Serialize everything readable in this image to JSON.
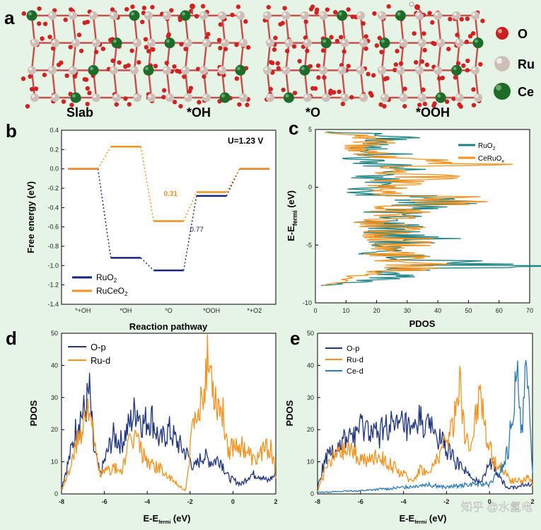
{
  "panels": {
    "a": {
      "letter": "a",
      "structures": [
        "Slab",
        "*OH",
        "*O",
        "*OOH"
      ],
      "legend": [
        {
          "label": "O",
          "color": "#c82020"
        },
        {
          "label": "Ru",
          "color": "#d8cdc6"
        },
        {
          "label": "Ce",
          "color": "#1f6b2a"
        }
      ]
    },
    "b": {
      "letter": "b"
    },
    "c": {
      "letter": "c"
    },
    "d": {
      "letter": "d"
    },
    "e": {
      "letter": "e"
    }
  },
  "colors": {
    "ru": "#1a237e",
    "orange": "#f5921e",
    "teal": "#1b8383",
    "ce": "#2a7ab5",
    "navy": "#1f3580"
  },
  "watermark": "知乎 @水氢电",
  "chart_data": [
    {
      "id": "b",
      "type": "line",
      "title": "",
      "annotation": "U=1.23 V",
      "xlabel": "Reaction pathway",
      "ylabel": "Free energy (eV)",
      "categories": [
        "*+OH",
        "*OH",
        "*O",
        "*OOH",
        "*+O2"
      ],
      "ylim": [
        -1.4,
        0.4
      ],
      "yticks": [
        "0.4",
        "0.2",
        "0.0",
        "-0.2",
        "-0.4",
        "-0.6",
        "-0.8",
        "-1.0",
        "-1.2",
        "-1.4"
      ],
      "series": [
        {
          "name": "RuO2",
          "name_main": "RuO",
          "name_sub": "2",
          "values": [
            0.0,
            -0.92,
            -1.05,
            -0.28,
            0.0
          ]
        },
        {
          "name": "RuCeO2",
          "name_main": "RuCeO",
          "name_sub": "2",
          "values": [
            0.0,
            0.23,
            -0.54,
            -0.24,
            0.0
          ]
        }
      ],
      "labels": [
        {
          "text": "0.31",
          "series": "RuCeO2"
        },
        {
          "text": "0.77",
          "series": "RuO2"
        }
      ]
    },
    {
      "id": "c",
      "type": "line",
      "xlabel": "PDOS",
      "ylabel_main": "E-E",
      "ylabel_sub": "fermi",
      "ylabel_unit": " (eV)",
      "xlim": [
        0,
        70
      ],
      "ylim": [
        -10,
        5
      ],
      "xticks": [
        "0",
        "10",
        "20",
        "30",
        "40",
        "50",
        "60",
        "70"
      ],
      "yticks": [
        "5",
        "0",
        "-5",
        "-10"
      ],
      "series": [
        {
          "name": "RuO2",
          "name_main": "RuO",
          "name_sub": "2",
          "profile": [
            [
              4.8,
              5
            ],
            [
              4.6,
              20
            ],
            [
              4.2,
              26
            ],
            [
              3.5,
              15
            ],
            [
              3,
              25
            ],
            [
              2.5,
              14
            ],
            [
              2,
              22
            ],
            [
              1.5,
              30
            ],
            [
              1,
              16
            ],
            [
              0.5,
              25
            ],
            [
              0,
              20
            ],
            [
              -0.5,
              14
            ],
            [
              -1,
              42
            ],
            [
              -1.5,
              36
            ],
            [
              -2,
              28
            ],
            [
              -2.5,
              26
            ],
            [
              -3,
              22
            ],
            [
              -3.5,
              30
            ],
            [
              -4,
              24
            ],
            [
              -4.5,
              36
            ],
            [
              -5,
              24
            ],
            [
              -5.5,
              20
            ],
            [
              -6,
              30
            ],
            [
              -6.5,
              42
            ],
            [
              -6.8,
              60
            ],
            [
              -7,
              45
            ],
            [
              -7.5,
              28
            ],
            [
              -8,
              18
            ],
            [
              -8.5,
              2
            ]
          ]
        },
        {
          "name": "CeRuOx",
          "name_main": "CeRuO",
          "name_sub": "x",
          "profile": [
            [
              4.8,
              3
            ],
            [
              4.5,
              15
            ],
            [
              4,
              22
            ],
            [
              3.5,
              13
            ],
            [
              3,
              18
            ],
            [
              2.5,
              30
            ],
            [
              2,
              48
            ],
            [
              1.5,
              24
            ],
            [
              1,
              40
            ],
            [
              0.5,
              30
            ],
            [
              0,
              22
            ],
            [
              -0.5,
              18
            ],
            [
              -1,
              54
            ],
            [
              -1.5,
              36
            ],
            [
              -2,
              28
            ],
            [
              -2.5,
              24
            ],
            [
              -3,
              20
            ],
            [
              -3.5,
              26
            ],
            [
              -4,
              24
            ],
            [
              -4.5,
              30
            ],
            [
              -5,
              27
            ],
            [
              -5.5,
              22
            ],
            [
              -6,
              28
            ],
            [
              -6.5,
              36
            ],
            [
              -7,
              36
            ],
            [
              -7.5,
              22
            ],
            [
              -8,
              12
            ],
            [
              -8.5,
              3
            ]
          ]
        }
      ]
    },
    {
      "id": "d",
      "type": "line",
      "xlabel_main": "E-E",
      "xlabel_sub": "fermi",
      "xlabel_unit": " (eV)",
      "ylabel": "PDOS",
      "xlim": [
        -8,
        2
      ],
      "ylim": [
        0,
        50
      ],
      "xticks": [
        "-8",
        "-6",
        "-4",
        "-2",
        "0",
        "2"
      ],
      "yticks": [
        "50",
        "40",
        "30",
        "20",
        "10",
        "0"
      ],
      "series": [
        {
          "name": "O-p",
          "profile": [
            [
              -8,
              2
            ],
            [
              -7.6,
              12
            ],
            [
              -7.2,
              24
            ],
            [
              -6.9,
              26
            ],
            [
              -6.7,
              32
            ],
            [
              -6.5,
              14
            ],
            [
              -6.2,
              6
            ],
            [
              -5.6,
              18
            ],
            [
              -5.2,
              16
            ],
            [
              -4.8,
              22
            ],
            [
              -4.5,
              27
            ],
            [
              -4.2,
              22
            ],
            [
              -3.8,
              24
            ],
            [
              -3.4,
              16
            ],
            [
              -3,
              20
            ],
            [
              -2.6,
              16
            ],
            [
              -2.1,
              12
            ],
            [
              -1.8,
              8
            ],
            [
              -1.4,
              12
            ],
            [
              -1,
              10
            ],
            [
              -0.6,
              11
            ],
            [
              -0.2,
              5
            ],
            [
              0.4,
              3
            ],
            [
              0.8,
              6
            ],
            [
              1.2,
              6
            ],
            [
              1.6,
              4
            ],
            [
              2,
              6
            ]
          ]
        },
        {
          "name": "Ru-d",
          "profile": [
            [
              -8,
              1
            ],
            [
              -7.6,
              8
            ],
            [
              -7.2,
              18
            ],
            [
              -6.9,
              24
            ],
            [
              -6.7,
              30
            ],
            [
              -6.5,
              16
            ],
            [
              -6.2,
              6
            ],
            [
              -5.6,
              8
            ],
            [
              -5.2,
              7
            ],
            [
              -4.8,
              16
            ],
            [
              -4.5,
              18
            ],
            [
              -4.2,
              12
            ],
            [
              -3.8,
              9
            ],
            [
              -3.4,
              8
            ],
            [
              -3,
              5
            ],
            [
              -2.6,
              3
            ],
            [
              -2.2,
              1
            ],
            [
              -1.9,
              20
            ],
            [
              -1.6,
              22
            ],
            [
              -1.4,
              34
            ],
            [
              -1.2,
              40
            ],
            [
              -1,
              38
            ],
            [
              -0.8,
              30
            ],
            [
              -0.5,
              26
            ],
            [
              -0.2,
              14
            ],
            [
              0.2,
              16
            ],
            [
              0.6,
              14
            ],
            [
              1,
              10
            ],
            [
              1.4,
              14
            ],
            [
              1.8,
              14
            ],
            [
              2,
              6
            ]
          ]
        }
      ]
    },
    {
      "id": "e",
      "type": "line",
      "xlabel_main": "E-E",
      "xlabel_sub": "fermi",
      "xlabel_unit": " (eV)",
      "ylabel": "PDOS",
      "xlim": [
        -8,
        2
      ],
      "ylim": [
        0,
        50
      ],
      "xticks": [
        "-8",
        "-6",
        "-4",
        "-2",
        "0",
        "2"
      ],
      "yticks": [
        "50",
        "40",
        "30",
        "20",
        "10",
        "0"
      ],
      "series": [
        {
          "name": "O-p",
          "profile": [
            [
              -8,
              2
            ],
            [
              -7.6,
              12
            ],
            [
              -7.2,
              14
            ],
            [
              -6.8,
              16
            ],
            [
              -6.4,
              18
            ],
            [
              -6,
              20
            ],
            [
              -5.6,
              20
            ],
            [
              -5.2,
              18
            ],
            [
              -4.8,
              22
            ],
            [
              -4.4,
              20
            ],
            [
              -4,
              22
            ],
            [
              -3.6,
              18
            ],
            [
              -3.2,
              24
            ],
            [
              -2.8,
              20
            ],
            [
              -2.4,
              18
            ],
            [
              -2,
              14
            ],
            [
              -1.6,
              10
            ],
            [
              -1.2,
              8
            ],
            [
              -0.8,
              4
            ],
            [
              -0.4,
              4
            ],
            [
              0,
              10
            ],
            [
              0.4,
              6
            ],
            [
              0.8,
              2
            ],
            [
              1.2,
              2
            ],
            [
              1.6,
              3
            ],
            [
              2,
              3
            ]
          ]
        },
        {
          "name": "Ru-d",
          "profile": [
            [
              -8,
              1
            ],
            [
              -7.6,
              8
            ],
            [
              -7.2,
              12
            ],
            [
              -6.8,
              13
            ],
            [
              -6.4,
              14
            ],
            [
              -6,
              11
            ],
            [
              -5.6,
              10
            ],
            [
              -5.2,
              12
            ],
            [
              -4.8,
              10
            ],
            [
              -4.4,
              8
            ],
            [
              -4,
              6
            ],
            [
              -3.6,
              4
            ],
            [
              -3.2,
              8
            ],
            [
              -2.8,
              6
            ],
            [
              -2.4,
              12
            ],
            [
              -2,
              16
            ],
            [
              -1.6,
              24
            ],
            [
              -1.4,
              37
            ],
            [
              -1.2,
              22
            ],
            [
              -1,
              14
            ],
            [
              -0.8,
              18
            ],
            [
              -0.6,
              26
            ],
            [
              -0.4,
              33
            ],
            [
              -0.2,
              20
            ],
            [
              0.2,
              10
            ],
            [
              0.6,
              8
            ],
            [
              1,
              4
            ],
            [
              1.4,
              4
            ],
            [
              1.8,
              5
            ],
            [
              2,
              3
            ]
          ]
        },
        {
          "name": "Ce-d",
          "profile": [
            [
              -8,
              0.5
            ],
            [
              -6,
              1
            ],
            [
              -4,
              2
            ],
            [
              -3,
              3
            ],
            [
              -2,
              2
            ],
            [
              -1,
              3
            ],
            [
              0,
              3
            ],
            [
              0.6,
              8
            ],
            [
              0.9,
              14
            ],
            [
              1.1,
              28
            ],
            [
              1.3,
              34
            ],
            [
              1.5,
              22
            ],
            [
              1.7,
              36
            ],
            [
              1.9,
              20
            ],
            [
              2,
              8
            ]
          ]
        }
      ]
    }
  ]
}
